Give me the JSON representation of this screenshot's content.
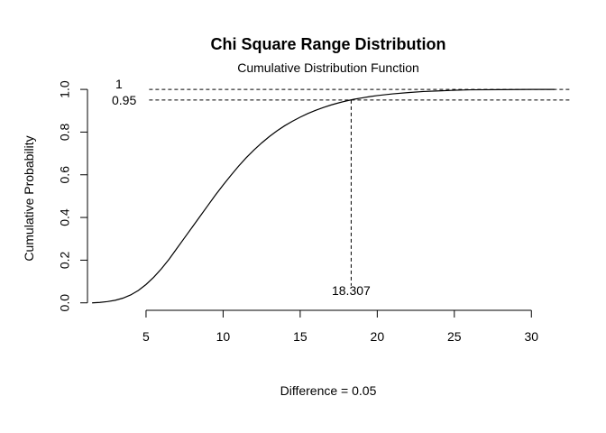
{
  "chart_data": {
    "type": "line",
    "title": "Chi Square Range Distribution",
    "subtitle": "Cumulative Distribution Function",
    "xlabel": "Difference =  0.05",
    "ylabel": "Cumulative Probability",
    "xlim": [
      1.2,
      32.5
    ],
    "ylim": [
      -0.035,
      1.03
    ],
    "x_ticks": [
      5,
      10,
      15,
      20,
      25,
      30
    ],
    "y_ticks": [
      0.0,
      0.2,
      0.4,
      0.6,
      0.8,
      1.0
    ],
    "x_tick_labels": [
      "5",
      "10",
      "15",
      "20",
      "25",
      "30"
    ],
    "y_tick_labels": [
      "0.0",
      "0.2",
      "0.4",
      "0.6",
      "0.8",
      "1.0"
    ],
    "curve": {
      "x": [
        1.5,
        2.0,
        2.5,
        3.0,
        3.5,
        4.0,
        4.5,
        5.0,
        5.5,
        6.0,
        6.5,
        7.0,
        7.5,
        8.0,
        8.5,
        9.0,
        9.5,
        10.0,
        10.5,
        11.0,
        11.5,
        12.0,
        12.5,
        13.0,
        13.5,
        14.0,
        14.5,
        15.0,
        15.5,
        16.0,
        16.5,
        17.0,
        17.5,
        18.0,
        18.5,
        19.0,
        19.5,
        20.0,
        21.0,
        22.0,
        23.0,
        24.0,
        25.0,
        26.0,
        28.0,
        30.0,
        31.5
      ],
      "y": [
        0.0,
        0.002,
        0.006,
        0.012,
        0.022,
        0.037,
        0.058,
        0.086,
        0.12,
        0.16,
        0.205,
        0.255,
        0.305,
        0.355,
        0.405,
        0.455,
        0.505,
        0.552,
        0.597,
        0.64,
        0.68,
        0.716,
        0.749,
        0.779,
        0.806,
        0.83,
        0.851,
        0.87,
        0.887,
        0.902,
        0.915,
        0.927,
        0.937,
        0.946,
        0.954,
        0.96,
        0.966,
        0.971,
        0.979,
        0.985,
        0.99,
        0.993,
        0.996,
        0.998,
        0.999,
        1.0,
        1.0
      ]
    },
    "reference_lines": [
      {
        "type": "horizontal",
        "y": 1.0,
        "label": "1",
        "style": "dashed"
      },
      {
        "type": "horizontal",
        "y": 0.95,
        "label": "0.95",
        "style": "dashed"
      },
      {
        "type": "vertical",
        "x": 18.307,
        "label": "18.307",
        "style": "dashed"
      }
    ],
    "grid": false,
    "legend": "none"
  }
}
